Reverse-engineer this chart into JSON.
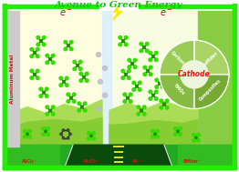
{
  "title": "Avenue to Green Energy",
  "title_color": "#00cc00",
  "title_fontsize": 7.5,
  "bg_color": "#ffffff",
  "border_color": "#22ee00",
  "anode_bg": "#fdfde0",
  "cathode_bg": "#f8fde0",
  "separator_color": "#d8eeff",
  "al_bar_color": "#d0d0d0",
  "al_text_color": "#dd1111",
  "electron_color": "#cc0000",
  "molecule_color": "#22bb00",
  "molecule_dark": "#115500",
  "bottom_road_dark": "#0a4a0a",
  "bottom_road_green": "#22aa22",
  "bottom_stripe_color": "#eeee00",
  "hill_color": "#88cc33",
  "hill_dark": "#55aa22",
  "bottom_labels": [
    "AlCl₄⁻",
    "Al₂Cl₇⁻",
    "Al³⁺",
    "EMIm⁺"
  ],
  "bottom_label_color": "#dd1111",
  "wedge_colors": [
    "#99cc55",
    "#aad466",
    "#88bb44",
    "#77aa33"
  ],
  "wedge_labels": [
    "Carbons",
    "Sulfides",
    "TMOs",
    "Composites"
  ],
  "cathode_center_color": "#ddeecc",
  "cathode_text_color": "#ee1111",
  "figsize": [
    2.62,
    1.89
  ],
  "dpi": 100
}
